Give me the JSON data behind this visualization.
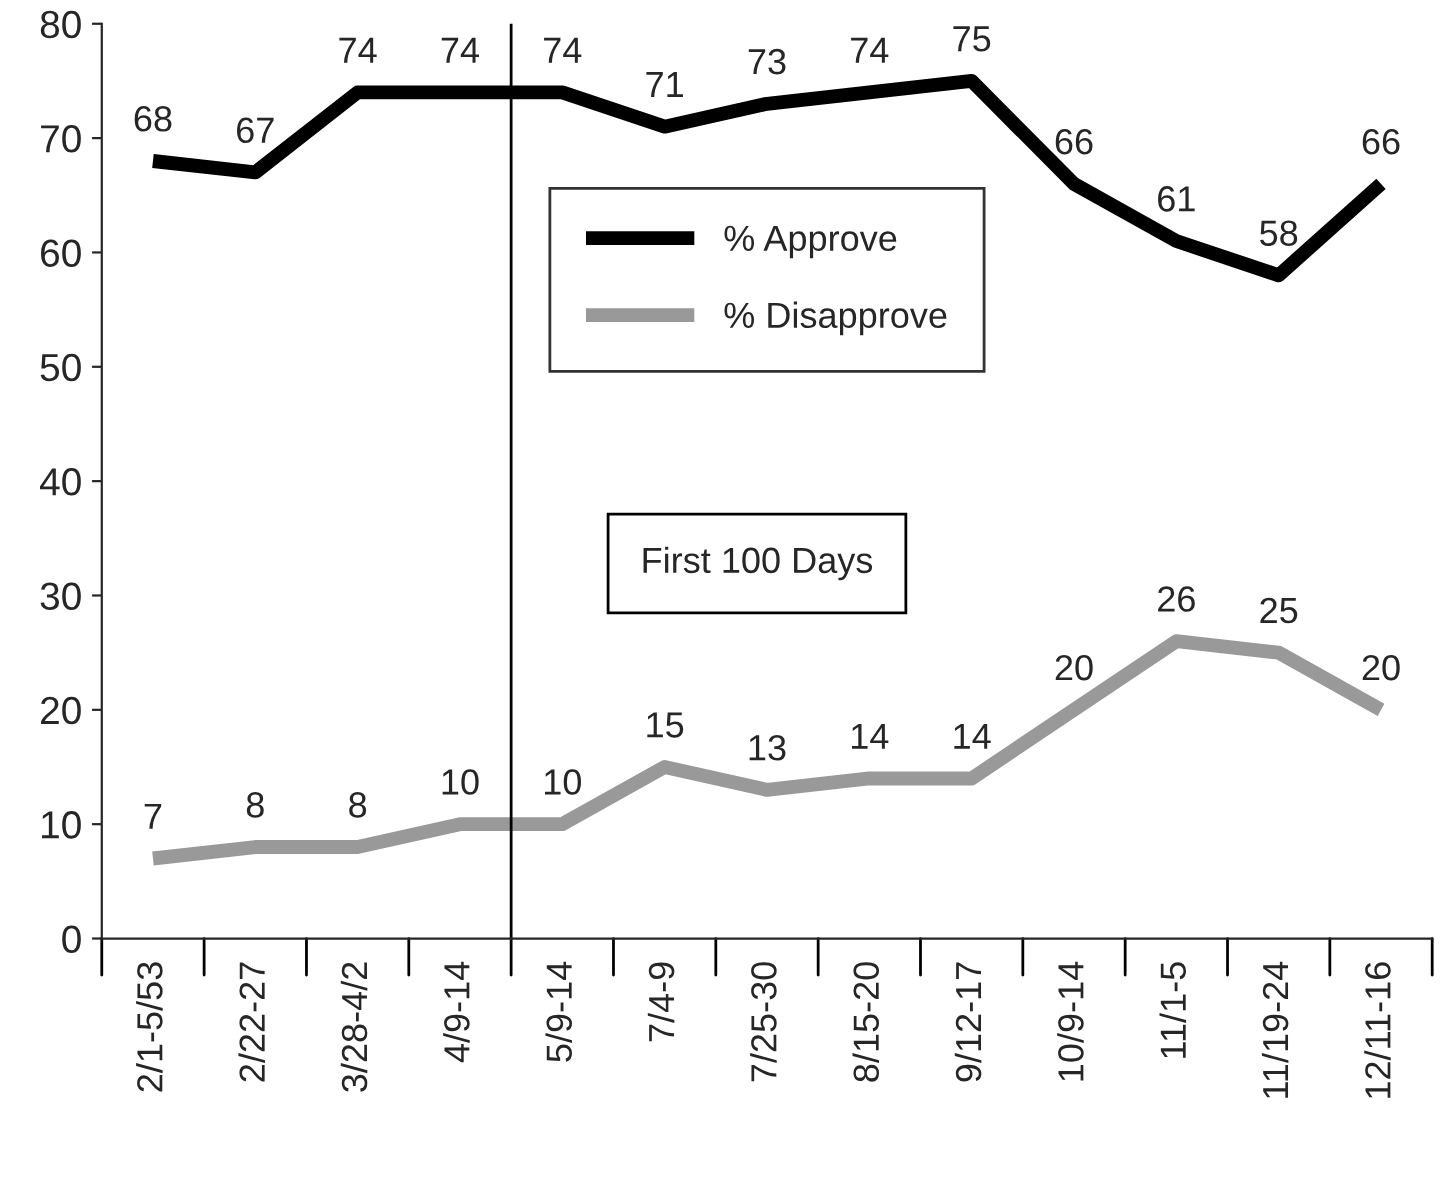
{
  "chart_data": {
    "type": "line",
    "categories": [
      "2/1-5/53",
      "2/22-27",
      "3/28-4/2",
      "4/9-14",
      "5/9-14",
      "7/4-9",
      "7/25-30",
      "8/15-20",
      "9/12-17",
      "10/9-14",
      "11/1-5",
      "11/19-24",
      "12/11-16"
    ],
    "series": [
      {
        "name": "% Approve",
        "color": "#000000",
        "values": [
          68,
          67,
          74,
          74,
          74,
          71,
          73,
          74,
          75,
          66,
          61,
          58,
          66
        ]
      },
      {
        "name": "% Disapprove",
        "color": "#999999",
        "values": [
          7,
          8,
          8,
          10,
          10,
          15,
          13,
          14,
          14,
          20,
          26,
          25,
          20
        ]
      }
    ],
    "ylim": [
      0,
      80
    ],
    "yticks": [
      0,
      10,
      20,
      30,
      40,
      50,
      60,
      70,
      80
    ],
    "annotations": [
      "First 100 Days"
    ],
    "data_labels": true,
    "legend": "center",
    "grid": false,
    "marker": "none",
    "line_style": "solid"
  }
}
